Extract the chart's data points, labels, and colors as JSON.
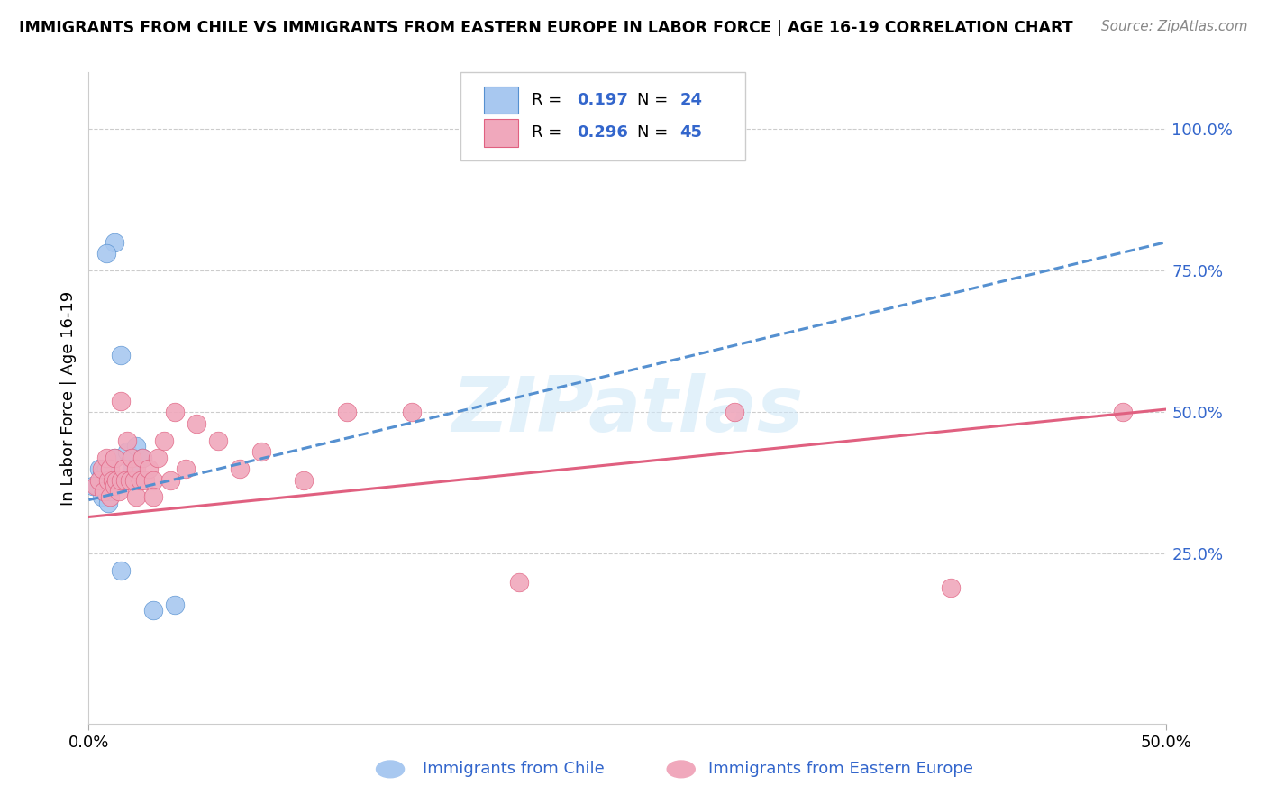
{
  "title": "IMMIGRANTS FROM CHILE VS IMMIGRANTS FROM EASTERN EUROPE IN LABOR FORCE | AGE 16-19 CORRELATION CHART",
  "source": "Source: ZipAtlas.com",
  "ylabel": "In Labor Force | Age 16-19",
  "xlim": [
    0.0,
    0.5
  ],
  "ylim": [
    -0.05,
    1.1
  ],
  "ytick_positions_right": [
    0.25,
    0.5,
    0.75,
    1.0
  ],
  "ytick_labels_right": [
    "25.0%",
    "50.0%",
    "75.0%",
    "100.0%"
  ],
  "color_chile": "#a8c8f0",
  "color_eastern": "#f0a8bc",
  "color_chile_line": "#5590d0",
  "color_eastern_line": "#e06080",
  "color_text_blue": "#3366cc",
  "watermark": "ZIPatlas",
  "background_color": "#ffffff",
  "grid_color": "#cccccc",
  "chile_x": [
    0.002,
    0.004,
    0.005,
    0.006,
    0.006,
    0.007,
    0.007,
    0.008,
    0.008,
    0.009,
    0.01,
    0.01,
    0.012,
    0.013,
    0.015,
    0.015,
    0.018,
    0.02,
    0.022,
    0.025,
    0.03,
    0.04,
    0.012,
    0.008
  ],
  "chile_y": [
    0.37,
    0.37,
    0.4,
    0.39,
    0.35,
    0.38,
    0.36,
    0.4,
    0.38,
    0.34,
    0.38,
    0.36,
    0.42,
    0.38,
    0.6,
    0.22,
    0.43,
    0.4,
    0.44,
    0.42,
    0.15,
    0.16,
    0.8,
    0.78
  ],
  "eastern_x": [
    0.003,
    0.005,
    0.006,
    0.007,
    0.008,
    0.009,
    0.01,
    0.01,
    0.011,
    0.012,
    0.012,
    0.013,
    0.014,
    0.015,
    0.015,
    0.016,
    0.017,
    0.018,
    0.019,
    0.02,
    0.021,
    0.022,
    0.022,
    0.024,
    0.025,
    0.026,
    0.028,
    0.03,
    0.03,
    0.032,
    0.035,
    0.038,
    0.04,
    0.045,
    0.05,
    0.06,
    0.07,
    0.08,
    0.1,
    0.12,
    0.15,
    0.2,
    0.3,
    0.4,
    0.48
  ],
  "eastern_y": [
    0.37,
    0.38,
    0.4,
    0.36,
    0.42,
    0.38,
    0.4,
    0.35,
    0.38,
    0.42,
    0.37,
    0.38,
    0.36,
    0.38,
    0.52,
    0.4,
    0.38,
    0.45,
    0.38,
    0.42,
    0.38,
    0.4,
    0.35,
    0.38,
    0.42,
    0.38,
    0.4,
    0.38,
    0.35,
    0.42,
    0.45,
    0.38,
    0.5,
    0.4,
    0.48,
    0.45,
    0.4,
    0.43,
    0.38,
    0.5,
    0.5,
    0.2,
    0.5,
    0.19,
    0.5
  ],
  "chile_trend_x0": 0.0,
  "chile_trend_y0": 0.345,
  "chile_trend_x1": 0.5,
  "chile_trend_y1": 0.8,
  "eastern_trend_x0": 0.0,
  "eastern_trend_y0": 0.315,
  "eastern_trend_x1": 0.5,
  "eastern_trend_y1": 0.505,
  "leg_r1": "R = ",
  "leg_v1": "0.197",
  "leg_n1_label": "N = ",
  "leg_n1": "24",
  "leg_r2": "R = ",
  "leg_v2": "0.296",
  "leg_n2_label": "N = ",
  "leg_n2": "45"
}
